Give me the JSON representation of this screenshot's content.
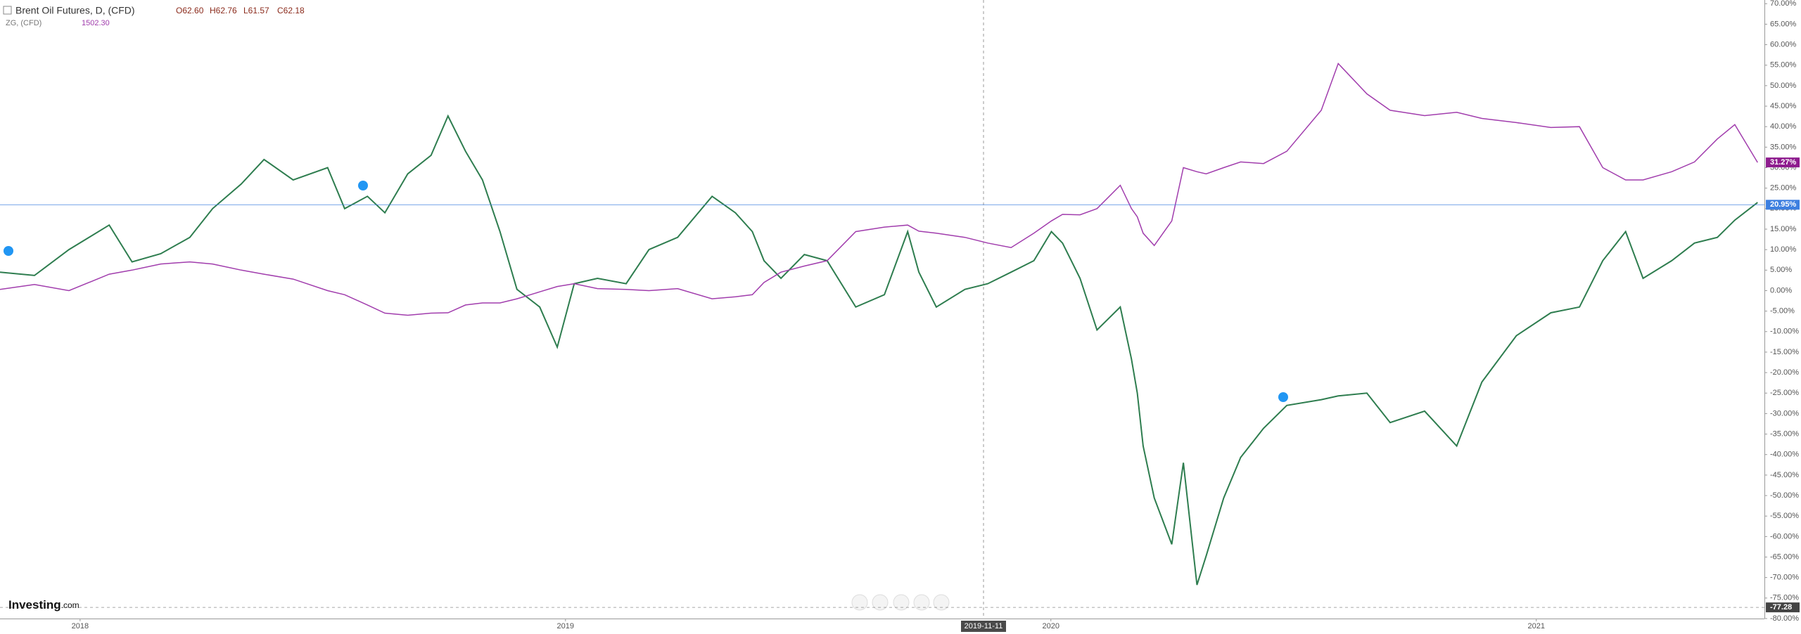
{
  "chart_data": {
    "type": "line",
    "x": [
      2017.835,
      2017.906,
      2017.977,
      2018.06,
      2018.107,
      2018.166,
      2018.226,
      2018.273,
      2018.332,
      2018.379,
      2018.439,
      2018.51,
      2018.545,
      2018.592,
      2018.628,
      2018.675,
      2018.723,
      2018.758,
      2018.794,
      2018.829,
      2018.865,
      2018.9,
      2018.947,
      2018.983,
      2019.018,
      2019.066,
      2019.125,
      2019.172,
      2019.231,
      2019.302,
      2019.35,
      2019.385,
      2019.409,
      2019.444,
      2019.492,
      2019.539,
      2019.598,
      2019.657,
      2019.705,
      2019.728,
      2019.764,
      2019.823,
      2019.87,
      2019.918,
      2019.965,
      2020.001,
      2020.024,
      2020.06,
      2020.095,
      2020.143,
      2020.166,
      2020.178,
      2020.19,
      2020.213,
      2020.249,
      2020.273,
      2020.301,
      2020.32,
      2020.356,
      2020.391,
      2020.438,
      2020.486,
      2020.557,
      2020.592,
      2020.651,
      2020.699,
      2020.77,
      2020.836,
      2020.888,
      2020.959,
      2021.03,
      2021.089,
      2021.137,
      2021.184,
      2021.22,
      2021.279,
      2021.326,
      2021.373,
      2021.409,
      2021.456
    ],
    "series": [
      {
        "name": "Brent Oil Futures, D, (CFD)",
        "color": "#2e7d4f",
        "header_values": [
          "O62.60",
          "H62.76",
          "L61.57",
          "C62.18"
        ],
        "values": [
          4.5,
          3.7,
          10,
          16,
          7,
          9,
          13,
          20,
          26,
          32,
          27,
          30,
          20,
          23,
          19,
          28.5,
          33,
          42.6,
          34,
          27,
          14.4,
          0.3,
          -4,
          -13.8,
          1.7,
          3,
          1.7,
          10,
          13,
          23,
          19,
          14.4,
          7.3,
          3,
          8.8,
          7.3,
          -4,
          -1,
          14.4,
          4.5,
          -4,
          0.3,
          1.7,
          4.5,
          7.3,
          14.4,
          11.6,
          3,
          -9.6,
          -4,
          -16.7,
          -25,
          -37.9,
          -50.6,
          -61.9,
          -42,
          -71.8,
          -64.7,
          -50.6,
          -40.7,
          -33.6,
          -28,
          -26.6,
          -25.7,
          -25,
          -32.2,
          -29.4,
          -37.9,
          -22.3,
          -11,
          -5.4,
          -4,
          7.3,
          14.4,
          3,
          7.3,
          11.6,
          13,
          17.2,
          21.5
        ]
      },
      {
        "name": "ZG, (CFD)",
        "color": "#a13dad",
        "header_values": [
          "1502.30"
        ],
        "values": [
          0.3,
          1.5,
          0,
          4,
          5,
          6.5,
          7,
          6.5,
          5,
          4,
          2.8,
          0,
          -1,
          -3.5,
          -5.5,
          -6,
          -5.5,
          -5.4,
          -3.5,
          -3,
          -3,
          -2,
          -0.3,
          1,
          1.7,
          0.5,
          0.3,
          0,
          0.5,
          -2,
          -1.5,
          -1,
          2,
          4.5,
          6,
          7.3,
          14.4,
          15.5,
          16,
          14.5,
          14,
          13,
          11.6,
          10.5,
          14,
          17,
          18.6,
          18.5,
          20,
          25.7,
          20,
          18,
          14,
          11,
          17,
          30,
          29,
          28.5,
          30,
          31.4,
          31,
          34,
          44,
          55.4,
          48,
          44,
          42.7,
          43.5,
          42,
          41,
          39.8,
          40,
          30,
          27,
          27,
          29,
          31.4,
          37,
          40.5,
          31.27
        ]
      }
    ],
    "xlim": [
      2017.835,
      2021.47
    ],
    "xticks": [
      2018,
      2019,
      2020,
      2021
    ],
    "ylim": [
      -80,
      70.9
    ],
    "yticks": [
      {
        "value": 70,
        "label": "70.00%"
      },
      {
        "value": 65,
        "label": "65.00%"
      },
      {
        "value": 60,
        "label": "60.00%"
      },
      {
        "value": 55,
        "label": "55.00%"
      },
      {
        "value": 50,
        "label": "50.00%"
      },
      {
        "value": 45,
        "label": "45.00%"
      },
      {
        "value": 40,
        "label": "40.00%"
      },
      {
        "value": 35,
        "label": "35.00%"
      },
      {
        "value": 30,
        "label": "30.00%"
      },
      {
        "value": 25,
        "label": "25.00%"
      },
      {
        "value": 20,
        "label": "20.00%"
      },
      {
        "value": 15,
        "label": "15.00%"
      },
      {
        "value": 10,
        "label": "10.00%"
      },
      {
        "value": 5,
        "label": "5.00%"
      },
      {
        "value": 0,
        "label": "0.00%"
      },
      {
        "value": -5,
        "label": "-5.00%"
      },
      {
        "value": -10,
        "label": "-10.00%"
      },
      {
        "value": -15,
        "label": "-15.00%"
      },
      {
        "value": -20,
        "label": "-20.00%"
      },
      {
        "value": -25,
        "label": "-25.00%"
      },
      {
        "value": -30,
        "label": "-30.00%"
      },
      {
        "value": -35,
        "label": "-35.00%"
      },
      {
        "value": -40,
        "label": "-40.00%"
      },
      {
        "value": -45,
        "label": "-45.00%"
      },
      {
        "value": -50,
        "label": "-50.00%"
      },
      {
        "value": -55,
        "label": "-55.00%"
      },
      {
        "value": -60,
        "label": "-60.00%"
      },
      {
        "value": -65,
        "label": "-65.00%"
      },
      {
        "value": -70,
        "label": "-70.00%"
      },
      {
        "value": -75,
        "label": "-75.00%"
      },
      {
        "value": -80,
        "label": "-80.00%"
      }
    ],
    "markers": [
      {
        "value": 31.27,
        "label": "31.27%",
        "color": "#8e1c8e"
      },
      {
        "value": 20.95,
        "label": "20.95%",
        "color": "#3d7fe0"
      },
      {
        "value": -77.28,
        "label": "-77.28",
        "color": "#444"
      }
    ],
    "crosshair_label": "2019-11-11",
    "logo": "Investing",
    "logo_suffix": ".com"
  }
}
